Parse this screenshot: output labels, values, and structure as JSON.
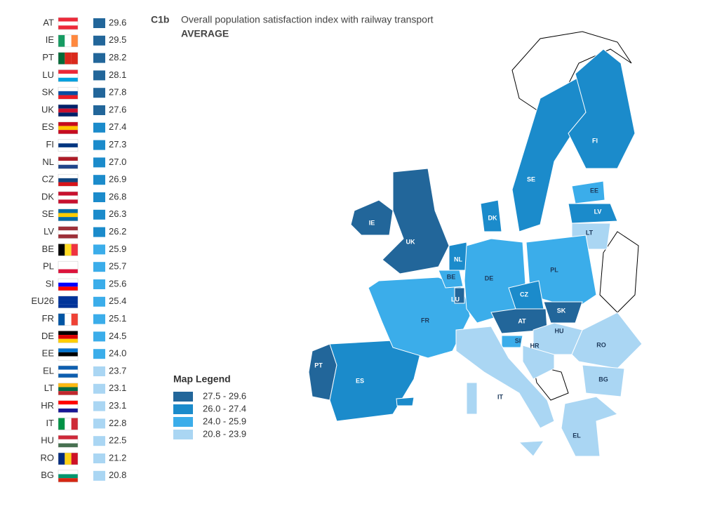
{
  "header": {
    "code": "C1b",
    "title": "Overall population satisfaction index with railway transport",
    "subtitle": "AVERAGE"
  },
  "ranking": [
    {
      "code": "AT",
      "value": "29.6",
      "color": "#22669a",
      "flag": {
        "dir": "h",
        "colors": [
          "#ed2939",
          "#ffffff",
          "#ed2939"
        ]
      }
    },
    {
      "code": "IE",
      "value": "29.5",
      "color": "#22669a",
      "flag": {
        "dir": "v",
        "colors": [
          "#169b62",
          "#ffffff",
          "#ff883e"
        ]
      }
    },
    {
      "code": "PT",
      "value": "28.2",
      "color": "#22669a",
      "flag": {
        "dir": "v",
        "colors": [
          "#046a38",
          "#da291c",
          "#da291c"
        ]
      }
    },
    {
      "code": "LU",
      "value": "28.1",
      "color": "#22669a",
      "flag": {
        "dir": "h",
        "colors": [
          "#ed2939",
          "#ffffff",
          "#00a1de"
        ]
      }
    },
    {
      "code": "SK",
      "value": "27.8",
      "color": "#22669a",
      "flag": {
        "dir": "h",
        "colors": [
          "#ffffff",
          "#0b4ea2",
          "#ee1c25"
        ]
      }
    },
    {
      "code": "UK",
      "value": "27.6",
      "color": "#22669a",
      "flag": {
        "dir": "h",
        "colors": [
          "#012169",
          "#c8102e",
          "#012169"
        ]
      }
    },
    {
      "code": "ES",
      "value": "27.4",
      "color": "#1b8bcb",
      "flag": {
        "dir": "h",
        "colors": [
          "#c60b1e",
          "#ffc400",
          "#c60b1e"
        ]
      }
    },
    {
      "code": "FI",
      "value": "27.3",
      "color": "#1b8bcb",
      "flag": {
        "dir": "h",
        "colors": [
          "#ffffff",
          "#003580",
          "#ffffff"
        ]
      }
    },
    {
      "code": "NL",
      "value": "27.0",
      "color": "#1b8bcb",
      "flag": {
        "dir": "h",
        "colors": [
          "#ae1c28",
          "#ffffff",
          "#21468b"
        ]
      }
    },
    {
      "code": "CZ",
      "value": "26.9",
      "color": "#1b8bcb",
      "flag": {
        "dir": "h",
        "colors": [
          "#ffffff",
          "#11457e",
          "#d7141a"
        ]
      }
    },
    {
      "code": "DK",
      "value": "26.8",
      "color": "#1b8bcb",
      "flag": {
        "dir": "h",
        "colors": [
          "#c8102e",
          "#ffffff",
          "#c8102e"
        ]
      }
    },
    {
      "code": "SE",
      "value": "26.3",
      "color": "#1b8bcb",
      "flag": {
        "dir": "h",
        "colors": [
          "#006aa7",
          "#fecc00",
          "#006aa7"
        ]
      }
    },
    {
      "code": "LV",
      "value": "26.2",
      "color": "#1b8bcb",
      "flag": {
        "dir": "h",
        "colors": [
          "#9e3039",
          "#ffffff",
          "#9e3039"
        ]
      }
    },
    {
      "code": "BE",
      "value": "25.9",
      "color": "#3badea",
      "flag": {
        "dir": "v",
        "colors": [
          "#000000",
          "#fdda24",
          "#ef3340"
        ]
      }
    },
    {
      "code": "PL",
      "value": "25.7",
      "color": "#3badea",
      "flag": {
        "dir": "h",
        "colors": [
          "#ffffff",
          "#ffffff",
          "#dc143c"
        ]
      }
    },
    {
      "code": "SI",
      "value": "25.6",
      "color": "#3badea",
      "flag": {
        "dir": "h",
        "colors": [
          "#ffffff",
          "#0000ff",
          "#ff0000"
        ]
      }
    },
    {
      "code": "EU26",
      "value": "25.4",
      "color": "#3badea",
      "flag": {
        "dir": "h",
        "colors": [
          "#003399",
          "#003399",
          "#003399"
        ]
      }
    },
    {
      "code": "FR",
      "value": "25.1",
      "color": "#3badea",
      "flag": {
        "dir": "v",
        "colors": [
          "#0055a4",
          "#ffffff",
          "#ef4135"
        ]
      }
    },
    {
      "code": "DE",
      "value": "24.5",
      "color": "#3badea",
      "flag": {
        "dir": "h",
        "colors": [
          "#000000",
          "#dd0000",
          "#ffce00"
        ]
      }
    },
    {
      "code": "EE",
      "value": "24.0",
      "color": "#3badea",
      "flag": {
        "dir": "h",
        "colors": [
          "#0072ce",
          "#000000",
          "#ffffff"
        ]
      }
    },
    {
      "code": "EL",
      "value": "23.7",
      "color": "#aad6f3",
      "flag": {
        "dir": "h",
        "colors": [
          "#0d5eaf",
          "#ffffff",
          "#0d5eaf"
        ]
      }
    },
    {
      "code": "LT",
      "value": "23.1",
      "color": "#aad6f3",
      "flag": {
        "dir": "h",
        "colors": [
          "#fdb913",
          "#006a44",
          "#c1272d"
        ]
      }
    },
    {
      "code": "HR",
      "value": "23.1",
      "color": "#aad6f3",
      "flag": {
        "dir": "h",
        "colors": [
          "#ff0000",
          "#ffffff",
          "#171796"
        ]
      }
    },
    {
      "code": "IT",
      "value": "22.8",
      "color": "#aad6f3",
      "flag": {
        "dir": "v",
        "colors": [
          "#009246",
          "#ffffff",
          "#ce2b37"
        ]
      }
    },
    {
      "code": "HU",
      "value": "22.5",
      "color": "#aad6f3",
      "flag": {
        "dir": "h",
        "colors": [
          "#ce2939",
          "#ffffff",
          "#477050"
        ]
      }
    },
    {
      "code": "RO",
      "value": "21.2",
      "color": "#aad6f3",
      "flag": {
        "dir": "v",
        "colors": [
          "#002b7f",
          "#fcd116",
          "#ce1126"
        ]
      }
    },
    {
      "code": "BG",
      "value": "20.8",
      "color": "#aad6f3",
      "flag": {
        "dir": "h",
        "colors": [
          "#ffffff",
          "#00966e",
          "#d62612"
        ]
      }
    }
  ],
  "legend": {
    "title": "Map Legend",
    "items": [
      {
        "label": "27.5 - 29.6",
        "color": "#22669a"
      },
      {
        "label": "26.0 - 27.4",
        "color": "#1b8bcb"
      },
      {
        "label": "24.0 - 25.9",
        "color": "#3badea"
      },
      {
        "label": "20.8 - 23.9",
        "color": "#aad6f3"
      }
    ]
  },
  "map": {
    "regions": [
      {
        "label": "IE",
        "color": "#22669a"
      },
      {
        "label": "UK",
        "color": "#22669a"
      },
      {
        "label": "PT",
        "color": "#22669a"
      },
      {
        "label": "ES",
        "color": "#1b8bcb"
      },
      {
        "label": "FR",
        "color": "#3badea"
      },
      {
        "label": "BE",
        "color": "#3badea"
      },
      {
        "label": "NL",
        "color": "#1b8bcb"
      },
      {
        "label": "LU",
        "color": "#22669a"
      },
      {
        "label": "DE",
        "color": "#3badea"
      },
      {
        "label": "DK",
        "color": "#1b8bcb"
      },
      {
        "label": "SE",
        "color": "#1b8bcb"
      },
      {
        "label": "FI",
        "color": "#1b8bcb"
      },
      {
        "label": "EE",
        "color": "#3badea"
      },
      {
        "label": "LV",
        "color": "#1b8bcb"
      },
      {
        "label": "LT",
        "color": "#aad6f3"
      },
      {
        "label": "PL",
        "color": "#3badea"
      },
      {
        "label": "CZ",
        "color": "#1b8bcb"
      },
      {
        "label": "AT",
        "color": "#22669a"
      },
      {
        "label": "SK",
        "color": "#22669a"
      },
      {
        "label": "HU",
        "color": "#aad6f3"
      },
      {
        "label": "SI",
        "color": "#3badea"
      },
      {
        "label": "HR",
        "color": "#aad6f3"
      },
      {
        "label": "RO",
        "color": "#aad6f3"
      },
      {
        "label": "BG",
        "color": "#aad6f3"
      },
      {
        "label": "IT",
        "color": "#aad6f3"
      },
      {
        "label": "EL",
        "color": "#aad6f3"
      }
    ]
  }
}
